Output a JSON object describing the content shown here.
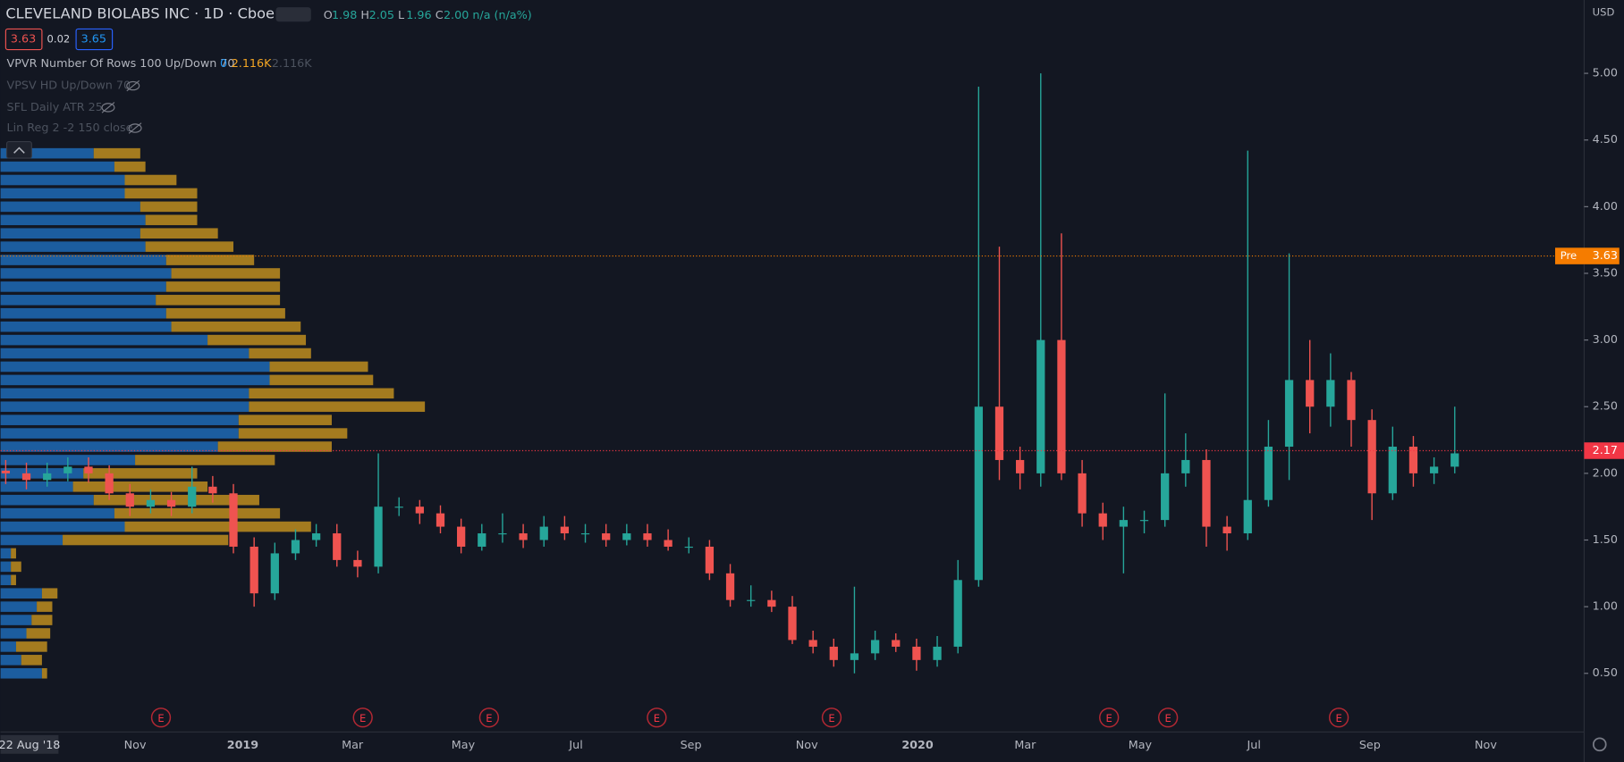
{
  "header": {
    "symbol": "CLEVELAND BIOLABS INC · 1D · Cboe BZX",
    "ohlc": [
      {
        "k": "O",
        "v": "1.98"
      },
      {
        "k": "H",
        "v": "2.05"
      },
      {
        "k": "L",
        "v": "1.96"
      },
      {
        "k": "C",
        "v": "2.00"
      }
    ],
    "change_text": "n/a (n/a%)",
    "bid": "3.63",
    "spread": "0.02",
    "ask": "3.65",
    "currency": "USD"
  },
  "indicators": [
    {
      "name": "VPVR Number Of Rows 100 Up/Down 70",
      "values": [
        "0",
        "2.116K",
        "2.116K"
      ]
    },
    {
      "name": "VPSV HD Up/Down 70"
    },
    {
      "name": "SFL Daily ATR 25"
    },
    {
      "name": "Lin Reg 2 -2 150 close"
    }
  ],
  "chart_data": {
    "type": "candlestick",
    "open": [
      2.02,
      2.0,
      1.95,
      2.0,
      2.05,
      2.0,
      1.85,
      1.75,
      1.8,
      1.75,
      1.9,
      1.85,
      1.45,
      1.1,
      1.4,
      1.5,
      1.55,
      1.35,
      1.3,
      1.75,
      1.75,
      1.7,
      1.6,
      1.45,
      1.55,
      1.55,
      1.5,
      1.6,
      1.55,
      1.55,
      1.5,
      1.55,
      1.5,
      1.45,
      1.45,
      1.25,
      1.05,
      1.05,
      1.0,
      0.75,
      0.7,
      0.6,
      0.65,
      0.75,
      0.7,
      0.6,
      0.7,
      1.2,
      2.5,
      2.1,
      2.0,
      3.0,
      2.0,
      1.7,
      1.6,
      1.65,
      1.65,
      2.0,
      2.1,
      1.6,
      1.55,
      1.8,
      2.2,
      2.7,
      2.5,
      2.7,
      2.4,
      1.85,
      2.2,
      2.0,
      2.05
    ],
    "high": [
      2.1,
      2.08,
      2.08,
      2.12,
      2.12,
      2.06,
      1.92,
      1.88,
      1.86,
      2.05,
      1.98,
      1.92,
      1.52,
      1.48,
      1.58,
      1.62,
      1.62,
      1.42,
      2.15,
      1.82,
      1.8,
      1.76,
      1.66,
      1.62,
      1.7,
      1.62,
      1.68,
      1.68,
      1.62,
      1.62,
      1.62,
      1.62,
      1.58,
      1.52,
      1.5,
      1.32,
      1.16,
      1.12,
      1.08,
      0.82,
      0.76,
      1.15,
      0.82,
      0.8,
      0.76,
      0.78,
      1.35,
      4.9,
      3.7,
      2.2,
      5.0,
      3.8,
      2.1,
      1.78,
      1.75,
      1.72,
      2.6,
      2.3,
      2.18,
      1.68,
      4.42,
      2.4,
      3.65,
      3.0,
      2.9,
      2.76,
      2.48,
      2.35,
      2.28,
      2.12,
      2.5
    ],
    "low": [
      1.92,
      1.88,
      1.9,
      1.94,
      1.93,
      1.8,
      1.68,
      1.7,
      1.68,
      1.7,
      1.78,
      1.4,
      1.0,
      1.05,
      1.35,
      1.45,
      1.3,
      1.22,
      1.25,
      1.68,
      1.62,
      1.55,
      1.4,
      1.42,
      1.48,
      1.44,
      1.45,
      1.5,
      1.48,
      1.45,
      1.46,
      1.45,
      1.42,
      1.4,
      1.2,
      1.0,
      1.0,
      0.96,
      0.72,
      0.65,
      0.55,
      0.5,
      0.6,
      0.66,
      0.52,
      0.55,
      0.65,
      1.15,
      1.95,
      1.88,
      1.9,
      1.95,
      1.6,
      1.5,
      1.25,
      1.55,
      1.6,
      1.9,
      1.45,
      1.42,
      1.5,
      1.75,
      1.95,
      2.3,
      2.35,
      2.2,
      1.65,
      1.8,
      1.9,
      1.92,
      2.0
    ],
    "close": [
      2.0,
      1.95,
      2.0,
      2.05,
      2.0,
      1.85,
      1.75,
      1.8,
      1.75,
      1.9,
      1.85,
      1.45,
      1.1,
      1.4,
      1.5,
      1.55,
      1.35,
      1.3,
      1.75,
      1.75,
      1.7,
      1.6,
      1.45,
      1.55,
      1.55,
      1.5,
      1.6,
      1.55,
      1.55,
      1.5,
      1.55,
      1.5,
      1.45,
      1.45,
      1.25,
      1.05,
      1.05,
      1.0,
      0.75,
      0.7,
      0.6,
      0.65,
      0.75,
      0.7,
      0.6,
      0.7,
      1.2,
      2.5,
      2.1,
      2.0,
      3.0,
      2.0,
      1.7,
      1.6,
      1.65,
      1.65,
      2.0,
      2.1,
      1.6,
      1.55,
      1.8,
      2.2,
      2.7,
      2.5,
      2.7,
      2.4,
      1.85,
      2.2,
      2.0,
      2.05,
      2.15
    ],
    "up_color": "#26a69a",
    "down_color": "#ef5350",
    "ylim": [
      0.06,
      5.55
    ],
    "yticks": [
      {
        "value": 0.5,
        "label": "0.50"
      },
      {
        "value": 1.0,
        "label": "1.00"
      },
      {
        "value": 1.5,
        "label": "1.50"
      },
      {
        "value": 2.0,
        "label": "2.00"
      },
      {
        "value": 2.5,
        "label": "2.50"
      },
      {
        "value": 3.0,
        "label": "3.00"
      },
      {
        "value": 3.5,
        "label": "3.50"
      },
      {
        "value": 4.0,
        "label": "4.00"
      },
      {
        "value": 4.5,
        "label": "4.50"
      },
      {
        "value": 5.0,
        "label": "5.00"
      }
    ],
    "time_labels": [
      "22 Aug '18",
      "Nov",
      "2019",
      "Mar",
      "May",
      "Jul",
      "Sep",
      "Nov",
      "2020",
      "Mar",
      "May",
      "Jul",
      "Sep",
      "Nov"
    ],
    "price_lines": [
      {
        "label": "Pre",
        "value": 3.63,
        "color": "#f57c00"
      },
      {
        "value": 2.17,
        "color": "#f23645"
      }
    ],
    "earnings_label": "E",
    "volume_profile": {
      "prices": [
        0.5,
        0.6,
        0.7,
        0.8,
        0.9,
        1.0,
        1.1,
        1.2,
        1.3,
        1.4,
        1.5,
        1.6,
        1.7,
        1.8,
        1.9,
        2.0,
        2.1,
        2.2,
        2.3,
        2.4,
        2.5,
        2.6,
        2.7,
        2.8,
        2.9,
        3.0,
        3.1,
        3.2,
        3.3,
        3.4,
        3.5,
        3.6,
        3.7,
        3.8,
        3.9,
        4.0,
        4.1,
        4.2,
        4.3,
        4.4
      ],
      "up": [
        40,
        20,
        15,
        25,
        30,
        35,
        40,
        10,
        10,
        10,
        60,
        120,
        110,
        90,
        70,
        80,
        130,
        210,
        230,
        230,
        240,
        240,
        260,
        260,
        240,
        200,
        165,
        160,
        150,
        160,
        165,
        160,
        140,
        135,
        140,
        135,
        120,
        120,
        110,
        90
      ],
      "down": [
        5,
        20,
        30,
        23,
        20,
        15,
        15,
        5,
        10,
        5,
        160,
        180,
        160,
        160,
        130,
        110,
        135,
        110,
        105,
        90,
        170,
        140,
        100,
        95,
        60,
        95,
        125,
        115,
        120,
        110,
        105,
        85,
        85,
        75,
        50,
        55,
        70,
        50,
        30,
        45
      ],
      "xlim": [
        0,
        1530
      ],
      "up_color": "#1f6fbf",
      "down_color": "#c9951f"
    }
  }
}
